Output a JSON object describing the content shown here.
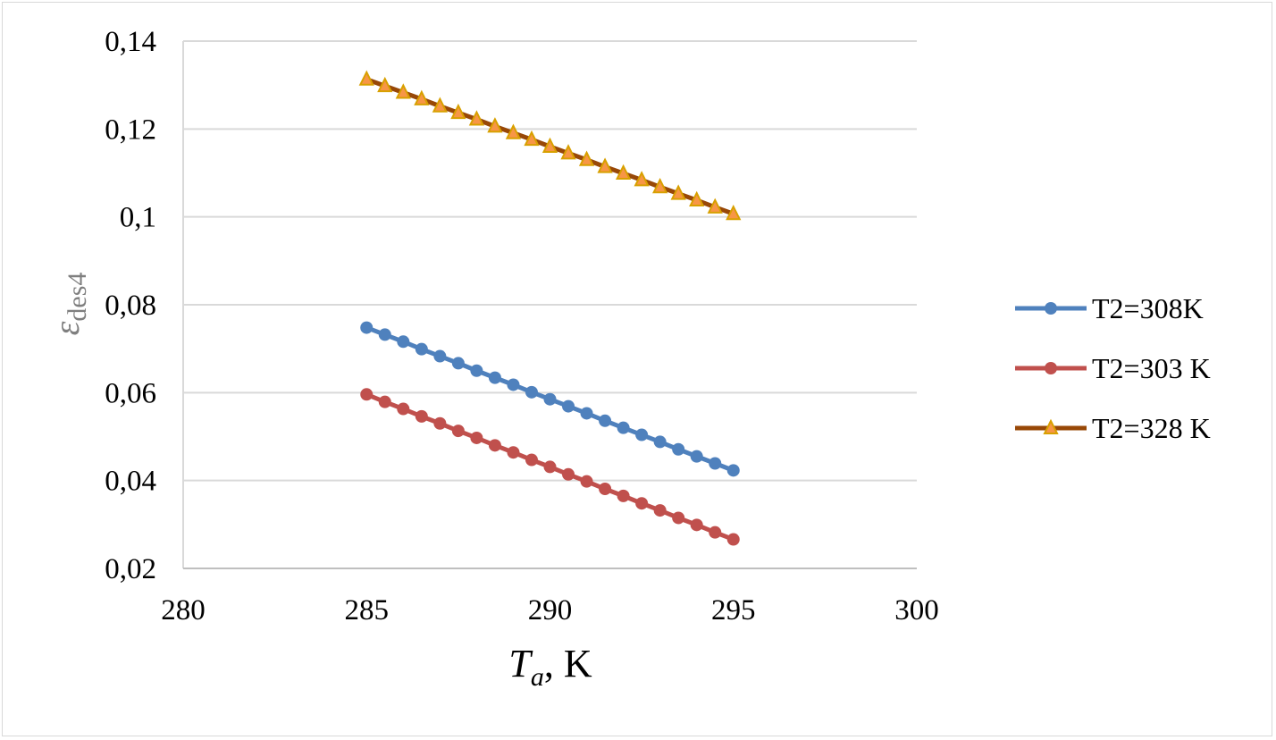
{
  "chart_data": {
    "type": "line",
    "title": "",
    "xlabel": {
      "main": "T",
      "sub": "a",
      "rest": ", K"
    },
    "ylabel": {
      "main": "ε",
      "sub": "des4"
    },
    "xlim": [
      280,
      300
    ],
    "ylim": [
      0.02,
      0.14
    ],
    "x_ticks": [
      280,
      285,
      290,
      295,
      300
    ],
    "y_ticks": [
      0.02,
      0.04,
      0.06,
      0.08,
      0.1,
      0.12,
      0.14
    ],
    "x_tick_labels": [
      "280",
      "285",
      "290",
      "295",
      "300"
    ],
    "y_tick_labels": [
      "0,02",
      "0,04",
      "0,06",
      "0,08",
      "0,1",
      "0,12",
      "0,14"
    ],
    "grid": "horizontal",
    "legend_position": "right",
    "x": [
      285,
      285.5,
      286,
      286.5,
      287,
      287.5,
      288,
      288.5,
      289,
      289.5,
      290,
      290.5,
      291,
      291.5,
      292,
      292.5,
      293,
      293.5,
      294,
      294.5,
      295
    ],
    "series": [
      {
        "name": "T2=308K",
        "color": "#4f81bd",
        "marker": "circle",
        "values": [
          0.0748,
          0.0732,
          0.0716,
          0.0699,
          0.0683,
          0.0667,
          0.065,
          0.0634,
          0.0618,
          0.0601,
          0.0585,
          0.0569,
          0.0553,
          0.0536,
          0.052,
          0.0504,
          0.0488,
          0.0471,
          0.0455,
          0.0439,
          0.0423
        ]
      },
      {
        "name": "T2=303 K",
        "color": "#c0504d",
        "marker": "circle",
        "values": [
          0.0596,
          0.0579,
          0.0563,
          0.0546,
          0.053,
          0.0513,
          0.0497,
          0.048,
          0.0464,
          0.0447,
          0.0431,
          0.0414,
          0.0398,
          0.0381,
          0.0365,
          0.0348,
          0.0332,
          0.0315,
          0.0299,
          0.0282,
          0.0266
        ]
      },
      {
        "name": "T2=328 K",
        "color": "#984807",
        "marker_fill": "#f79646",
        "marker_stroke": "#d8a000",
        "marker": "triangle",
        "values": [
          0.1313,
          0.1298,
          0.1283,
          0.1268,
          0.1252,
          0.1237,
          0.1222,
          0.1206,
          0.1191,
          0.1176,
          0.116,
          0.1145,
          0.113,
          0.1114,
          0.1099,
          0.1084,
          0.1068,
          0.1053,
          0.1038,
          0.1022,
          0.1007
        ]
      }
    ]
  }
}
